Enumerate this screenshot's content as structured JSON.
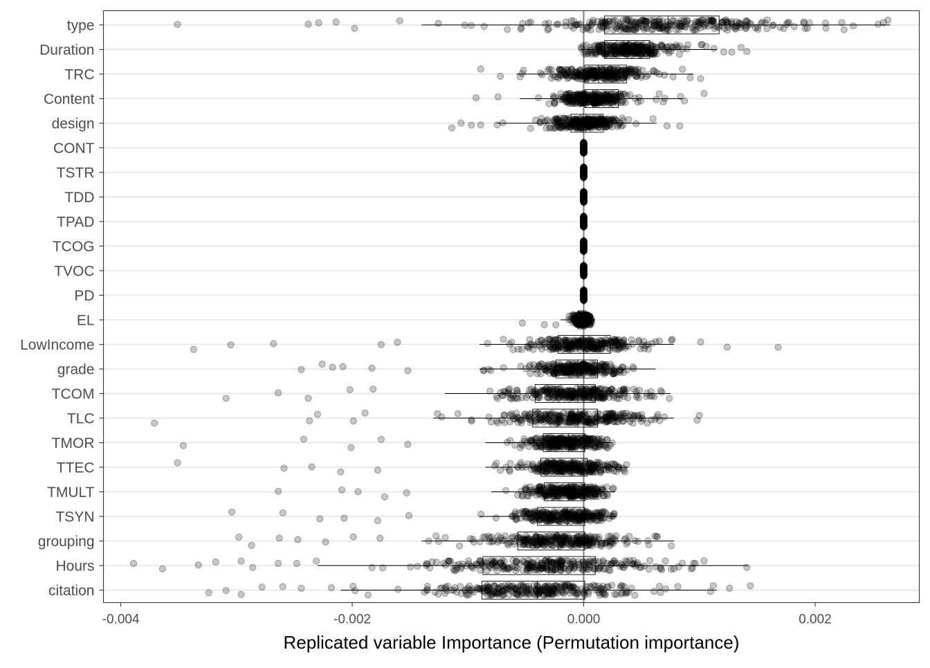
{
  "chart_data": {
    "type": "scatter",
    "subtype": "jittered points with boxplots",
    "title": "",
    "xlabel": "Replicated variable Importance (Permutation importance)",
    "ylabel": "",
    "xlim": [
      -0.00415,
      0.0029
    ],
    "x_ticks": [
      -0.004,
      -0.002,
      0.0,
      0.002
    ],
    "x_tick_labels": [
      "-0.004",
      "-0.002",
      "0.000",
      "0.002"
    ],
    "reference_line_x": 0,
    "grid": "major horizontal lines",
    "legend": "none",
    "categories": [
      "type",
      "Duration",
      "TRC",
      "Content",
      "design",
      "CONT",
      "TSTR",
      "TDD",
      "TPAD",
      "TCOG",
      "TVOC",
      "PD",
      "EL",
      "LowIncome",
      "grade",
      "TCOM",
      "TLC",
      "TMOR",
      "TTEC",
      "TMULT",
      "TSYN",
      "grouping",
      "Hours",
      "citation"
    ],
    "boxplots": [
      {
        "variable": "type",
        "whisker_low": -0.0014,
        "q1": 0.00018,
        "median": 0.00073,
        "q3": 0.00117,
        "whisker_high": 0.00265
      },
      {
        "variable": "Duration",
        "whisker_low": -3e-05,
        "q1": 0.00018,
        "median": 0.00038,
        "q3": 0.00057,
        "whisker_high": 0.00115
      },
      {
        "variable": "TRC",
        "whisker_low": -0.00058,
        "q1": 1e-05,
        "median": 0.00013,
        "q3": 0.00037,
        "whisker_high": 0.00095
      },
      {
        "variable": "Content",
        "whisker_low": -0.00055,
        "q1": 1e-05,
        "median": 8e-05,
        "q3": 0.0003,
        "whisker_high": 0.00085
      },
      {
        "variable": "design",
        "whisker_low": -0.00075,
        "q1": -0.00011,
        "median": 2e-05,
        "q3": 0.00017,
        "whisker_high": 0.00063
      },
      {
        "variable": "CONT",
        "whisker_low": -2e-05,
        "q1": 0,
        "median": 0,
        "q3": 0,
        "whisker_high": 2e-05
      },
      {
        "variable": "TSTR",
        "whisker_low": -2e-05,
        "q1": 0,
        "median": 0,
        "q3": 0,
        "whisker_high": 2e-05
      },
      {
        "variable": "TDD",
        "whisker_low": -2e-05,
        "q1": 0,
        "median": 0,
        "q3": 0,
        "whisker_high": 2e-05
      },
      {
        "variable": "TPAD",
        "whisker_low": -2e-05,
        "q1": 0,
        "median": 0,
        "q3": 0,
        "whisker_high": 2e-05
      },
      {
        "variable": "TCOG",
        "whisker_low": -2e-05,
        "q1": 0,
        "median": 0,
        "q3": 0,
        "whisker_high": 2e-05
      },
      {
        "variable": "TVOC",
        "whisker_low": -2e-05,
        "q1": 0,
        "median": 0,
        "q3": 0,
        "whisker_high": 2e-05
      },
      {
        "variable": "PD",
        "whisker_low": -2e-05,
        "q1": 0,
        "median": 0,
        "q3": 0,
        "whisker_high": 2e-05
      },
      {
        "variable": "EL",
        "whisker_low": -0.0002,
        "q1": -5e-05,
        "median": -1e-05,
        "q3": 2e-05,
        "whisker_high": 0.0001
      },
      {
        "variable": "LowIncome",
        "whisker_low": -0.0009,
        "q1": -0.00022,
        "median": 0,
        "q3": 0.00023,
        "whisker_high": 0.00078
      },
      {
        "variable": "grade",
        "whisker_low": -0.0009,
        "q1": -0.00024,
        "median": -5e-05,
        "q3": 0.00012,
        "whisker_high": 0.00062
      },
      {
        "variable": "TCOM",
        "whisker_low": -0.0012,
        "q1": -0.00042,
        "median": -5e-05,
        "q3": 0.0001,
        "whisker_high": 0.00075
      },
      {
        "variable": "TLC",
        "whisker_low": -0.0013,
        "q1": -0.00044,
        "median": -5e-05,
        "q3": 0.00012,
        "whisker_high": 0.00078
      },
      {
        "variable": "TMOR",
        "whisker_low": -0.00085,
        "q1": -0.00035,
        "median": -0.00013,
        "q3": 1e-05,
        "whisker_high": 0.00025
      },
      {
        "variable": "TTEC",
        "whisker_low": -0.00085,
        "q1": -0.00037,
        "median": -0.0001,
        "q3": 3e-05,
        "whisker_high": 0.00038
      },
      {
        "variable": "TMULT",
        "whisker_low": -0.0008,
        "q1": -0.00034,
        "median": -0.00013,
        "q3": 1e-05,
        "whisker_high": 0.00027
      },
      {
        "variable": "TSYN",
        "whisker_low": -0.0009,
        "q1": -0.0004,
        "median": -0.00014,
        "q3": 1e-05,
        "whisker_high": 0.00028
      },
      {
        "variable": "grouping",
        "whisker_low": -0.0014,
        "q1": -0.00057,
        "median": -0.00022,
        "q3": 1e-05,
        "whisker_high": 0.00078
      },
      {
        "variable": "Hours",
        "whisker_low": -0.0023,
        "q1": -0.00087,
        "median": -0.0003,
        "q3": 0.0001,
        "whisker_high": 0.00142
      },
      {
        "variable": "citation",
        "whisker_low": -0.0021,
        "q1": -0.00088,
        "median": -0.0004,
        "q3": 1e-05,
        "whisker_high": 0.00115
      }
    ],
    "outliers": [
      {
        "variable": "type",
        "x": [
          -0.00351,
          -0.00238,
          -0.00229,
          -0.00214,
          -0.00198,
          -0.00159,
          0.00209,
          0.00225,
          0.00233,
          0.00259,
          0.00263
        ]
      },
      {
        "variable": "Duration",
        "x": [
          0.00121,
          0.00128,
          0.00136,
          0.00141
        ]
      },
      {
        "variable": "TRC",
        "x": [
          -0.00089,
          -0.00072,
          0.00092,
          0.00101
        ]
      },
      {
        "variable": "Content",
        "x": [
          -0.00093,
          -0.00074,
          0.00087,
          0.00104
        ]
      },
      {
        "variable": "design",
        "x": [
          -0.00114,
          -0.00106,
          -0.00097,
          -0.00089,
          0.00072,
          0.00083
        ]
      },
      {
        "variable": "EL",
        "x": [
          -0.00053,
          -0.00034,
          -0.00024
        ]
      },
      {
        "variable": "LowIncome",
        "x": [
          -0.00337,
          -0.00305,
          -0.00268,
          -0.00175,
          -0.00161,
          0.00101,
          0.00124,
          0.00168
        ]
      },
      {
        "variable": "grade",
        "x": [
          -0.00244,
          -0.00226,
          -0.00217,
          -0.00208,
          -0.00183,
          -0.00152
        ]
      },
      {
        "variable": "TCOM",
        "x": [
          -0.00309,
          -0.00264,
          -0.00238,
          -0.00202,
          -0.00182,
          0.00074
        ]
      },
      {
        "variable": "TLC",
        "x": [
          -0.00371,
          -0.00237,
          -0.0023,
          -0.00199,
          -0.00189,
          0.00098,
          0.001
        ]
      },
      {
        "variable": "TMOR",
        "x": [
          -0.00346,
          -0.00242,
          -0.00201,
          -0.00175,
          -0.00152
        ]
      },
      {
        "variable": "TTEC",
        "x": [
          -0.00351,
          -0.00259,
          -0.00235,
          -0.0021,
          -0.00178,
          0.00037
        ]
      },
      {
        "variable": "TMULT",
        "x": [
          -0.00264,
          -0.00209,
          -0.00195,
          -0.00172,
          -0.00153
        ]
      },
      {
        "variable": "TSYN",
        "x": [
          -0.00304,
          -0.0026,
          -0.00228,
          -0.00207,
          -0.00178,
          -0.00151
        ]
      },
      {
        "variable": "grouping",
        "x": [
          -0.00298,
          -0.00287,
          -0.00263,
          -0.00247,
          -0.00223,
          -0.00199,
          -0.00176
        ]
      },
      {
        "variable": "Hours",
        "x": [
          -0.00389,
          -0.00364,
          -0.00333,
          -0.00318,
          -0.00296,
          -0.00286,
          -0.00264,
          -0.00248,
          -0.00231,
          0.00104,
          0.00141
        ]
      },
      {
        "variable": "citation",
        "x": [
          -0.00324,
          -0.00309,
          -0.00296,
          -0.00278,
          -0.0026,
          -0.00244,
          -0.00218,
          0.00112,
          0.00126,
          0.00144
        ]
      }
    ]
  }
}
